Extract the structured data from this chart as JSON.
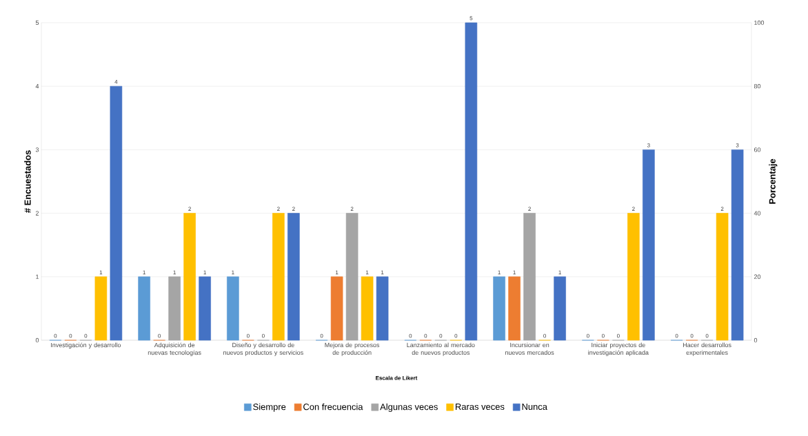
{
  "chart_data": {
    "type": "bar",
    "xlabel": "Escala de Likert",
    "ylabel": "# Encuestados",
    "y2label": "Porcentaje",
    "categories": [
      "Investigación y desarrollo",
      "Adquisición de nuevas tecnologías",
      "Diseño y desarrollo de nuevos productos y servicios",
      "Mejora de procesos de producción",
      "Lanzamiento al mercado de nuevos productos",
      "Incursionar en nuevos mercados",
      "Iniciar proyectos de investigación aplicada",
      "Hacer desarrollos experimentales"
    ],
    "series": [
      {
        "name": "Siempre",
        "color": "#5b9bd5",
        "values": [
          0,
          1,
          1,
          0,
          0,
          1,
          0,
          0
        ]
      },
      {
        "name": "Con frecuencia",
        "color": "#ed7d31",
        "values": [
          0,
          0,
          0,
          1,
          0,
          1,
          0,
          0
        ]
      },
      {
        "name": "Algunas veces",
        "color": "#a5a5a5",
        "values": [
          0,
          1,
          0,
          2,
          0,
          2,
          0,
          0
        ]
      },
      {
        "name": "Raras veces",
        "color": "#ffc000",
        "values": [
          1,
          2,
          2,
          1,
          0,
          0,
          2,
          2
        ]
      },
      {
        "name": "Nunca",
        "color": "#4472c4",
        "values": [
          4,
          1,
          2,
          1,
          5,
          1,
          3,
          3
        ]
      }
    ],
    "ylim": [
      0,
      5
    ],
    "yticks": [
      0,
      1,
      2,
      3,
      4,
      5
    ],
    "y2lim": [
      0,
      100
    ],
    "y2ticks": [
      0,
      20,
      40,
      60,
      80,
      100
    ],
    "grid": "y",
    "legend": "bottom",
    "data_labels": true
  }
}
